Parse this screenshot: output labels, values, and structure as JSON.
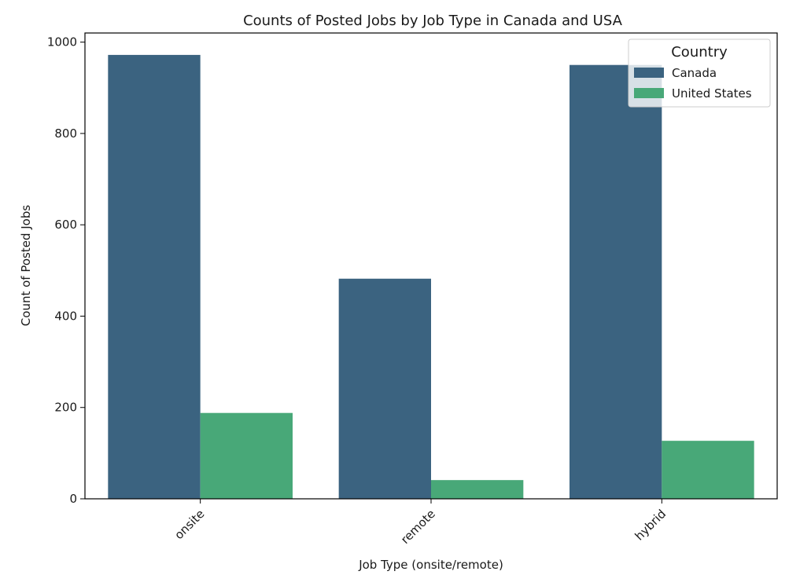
{
  "chart_data": {
    "type": "bar",
    "title": "Counts of Posted Jobs by Job Type in Canada and USA",
    "xlabel": "Job Type (onsite/remote)",
    "ylabel": "Count of Posted Jobs",
    "categories": [
      "onsite",
      "remote",
      "hybrid"
    ],
    "series": [
      {
        "name": "Canada",
        "color": "#3b6380",
        "values": [
          972,
          482,
          950
        ]
      },
      {
        "name": "United States",
        "color": "#48a878",
        "values": [
          188,
          41,
          127
        ]
      }
    ],
    "ylim": [
      0,
      1020
    ],
    "yticks": [
      0,
      200,
      400,
      600,
      800,
      1000
    ],
    "grid": false,
    "legend": {
      "title": "Country",
      "placement": "top-right"
    }
  }
}
